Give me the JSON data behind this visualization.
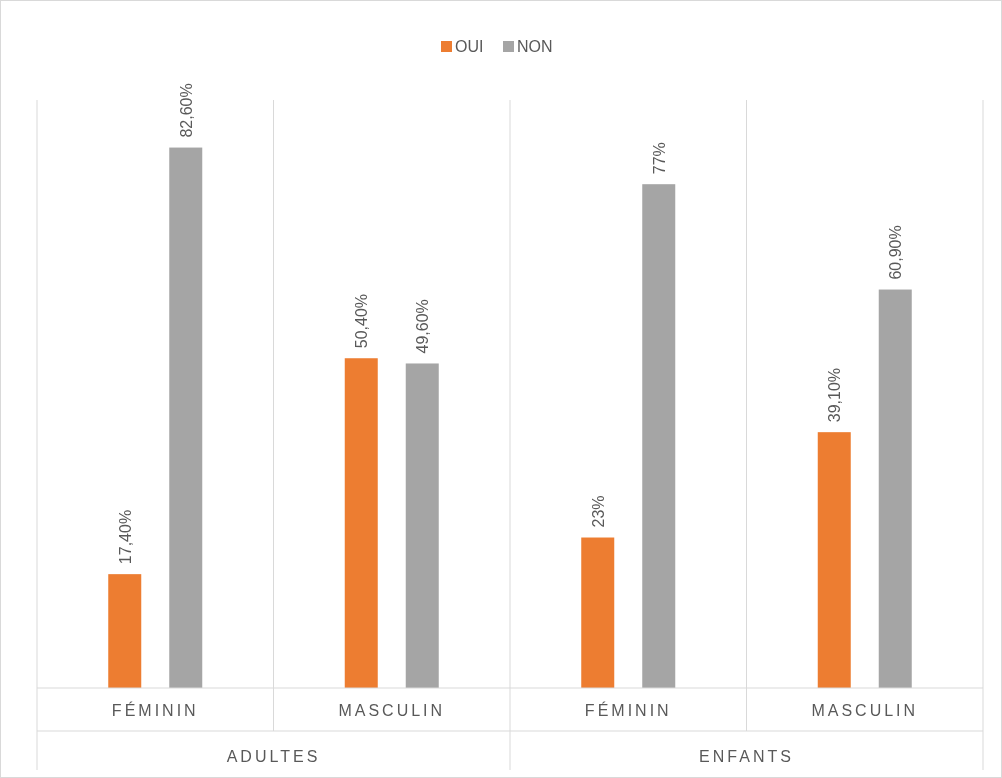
{
  "chart_data": {
    "type": "bar",
    "categories": [
      "FÉMININ",
      "MASCULIN",
      "FÉMININ",
      "MASCULIN"
    ],
    "series": [
      {
        "name": "OUI",
        "color": "#ed7d31",
        "values": [
          17.4,
          50.4,
          23,
          39.1
        ],
        "value_labels": [
          "17,40%",
          "50,40%",
          "23%",
          "39,10%"
        ]
      },
      {
        "name": "NON",
        "color": "#a5a5a5",
        "values": [
          82.6,
          49.6,
          77,
          60.9
        ],
        "value_labels": [
          "82,60%",
          "49,60%",
          "77%",
          "60,90%"
        ]
      }
    ],
    "annotations": [
      "ADULTES",
      "ENFANTS"
    ],
    "legend": "top",
    "grid": "x"
  }
}
